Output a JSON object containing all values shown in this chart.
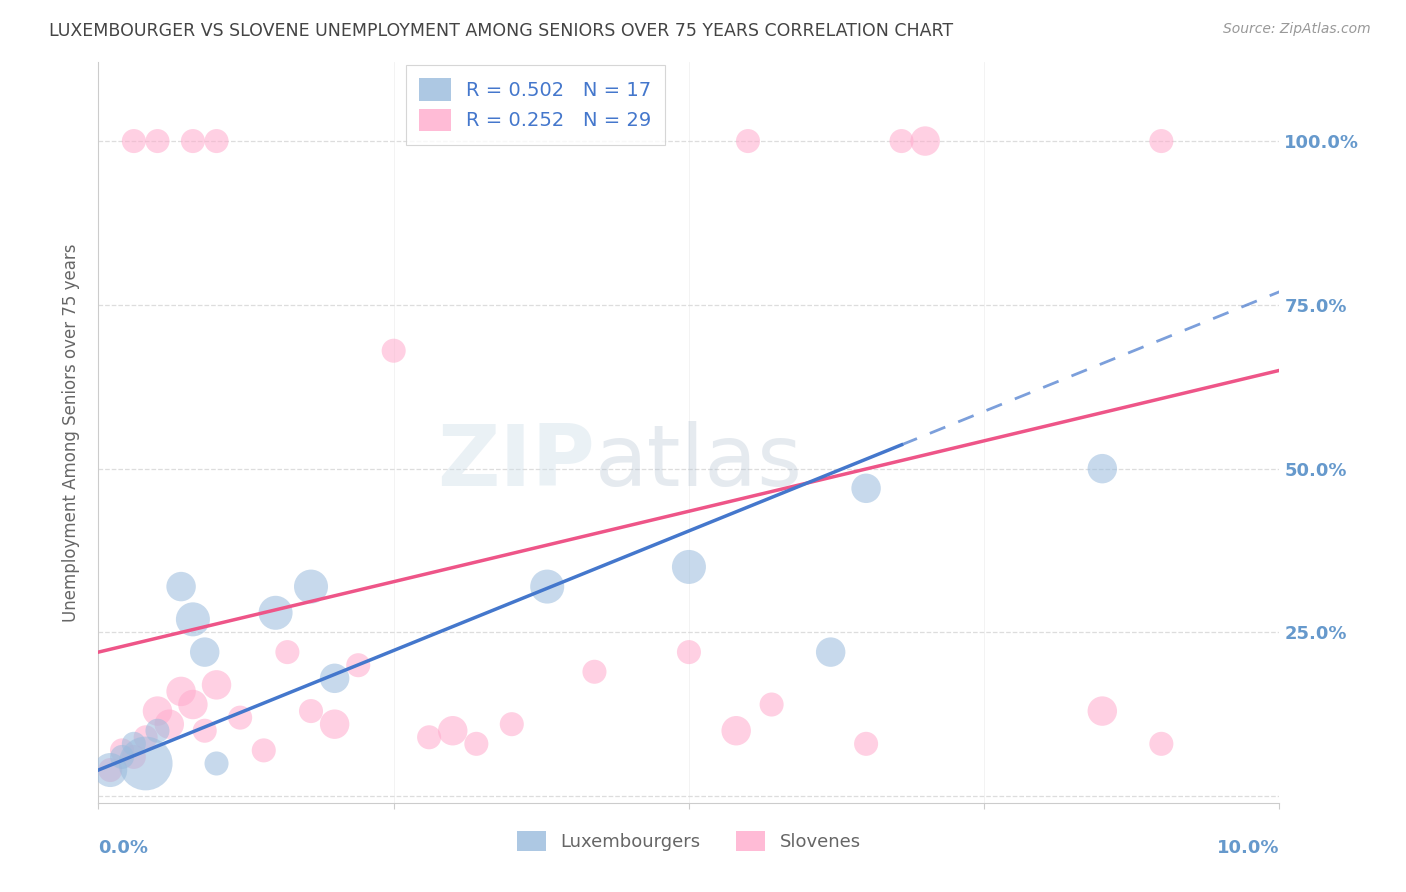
{
  "title": "LUXEMBOURGER VS SLOVENE UNEMPLOYMENT AMONG SENIORS OVER 75 YEARS CORRELATION CHART",
  "source": "Source: ZipAtlas.com",
  "ylabel": "Unemployment Among Seniors over 75 years",
  "watermark_zip": "ZIP",
  "watermark_atlas": "atlas",
  "blue_R": 0.502,
  "blue_N": 17,
  "pink_R": 0.252,
  "pink_N": 29,
  "legend_label_blue": "Luxembourgers",
  "legend_label_pink": "Slovenes",
  "blue_color": "#99BBDD",
  "blue_line_color": "#4477CC",
  "pink_color": "#FFAACC",
  "pink_line_color": "#EE5588",
  "blue_scatter_x": [
    0.001,
    0.002,
    0.003,
    0.004,
    0.005,
    0.007,
    0.008,
    0.009,
    0.01,
    0.015,
    0.018,
    0.02,
    0.038,
    0.05,
    0.062,
    0.065,
    0.085
  ],
  "blue_scatter_y": [
    0.04,
    0.06,
    0.08,
    0.05,
    0.1,
    0.32,
    0.27,
    0.22,
    0.05,
    0.28,
    0.32,
    0.18,
    0.32,
    0.35,
    0.22,
    0.47,
    0.5
  ],
  "blue_scatter_size": [
    120,
    60,
    60,
    300,
    60,
    90,
    120,
    90,
    60,
    120,
    120,
    90,
    120,
    120,
    90,
    90,
    90
  ],
  "pink_scatter_x": [
    0.001,
    0.002,
    0.003,
    0.004,
    0.005,
    0.006,
    0.007,
    0.008,
    0.009,
    0.01,
    0.012,
    0.014,
    0.016,
    0.018,
    0.02,
    0.022,
    0.025,
    0.028,
    0.03,
    0.032,
    0.035,
    0.042,
    0.05,
    0.054,
    0.057,
    0.065,
    0.07,
    0.085,
    0.09
  ],
  "pink_scatter_y": [
    0.04,
    0.07,
    0.06,
    0.09,
    0.13,
    0.11,
    0.16,
    0.14,
    0.1,
    0.17,
    0.12,
    0.07,
    0.22,
    0.13,
    0.11,
    0.2,
    0.68,
    0.09,
    0.1,
    0.08,
    0.11,
    0.19,
    0.22,
    0.1,
    0.14,
    0.08,
    1.0,
    0.13,
    0.08
  ],
  "pink_scatter_size": [
    60,
    60,
    60,
    60,
    90,
    90,
    90,
    90,
    60,
    90,
    60,
    60,
    60,
    60,
    90,
    60,
    60,
    60,
    90,
    60,
    60,
    60,
    60,
    90,
    60,
    60,
    90,
    90,
    60
  ],
  "pink_top_x": [
    0.003,
    0.005,
    0.008,
    0.01,
    0.055,
    0.068,
    0.09
  ],
  "pink_top_y": [
    1.0,
    1.0,
    1.0,
    1.0,
    1.0,
    1.0,
    1.0
  ],
  "pink_top_size": [
    60,
    60,
    60,
    60,
    60,
    60,
    60
  ],
  "blue_line_x0": 0.0,
  "blue_line_y0": 0.04,
  "blue_line_x1": 0.1,
  "blue_line_y1": 0.77,
  "pink_line_x0": 0.0,
  "pink_line_y0": 0.22,
  "pink_line_x1": 0.1,
  "pink_line_y1": 0.65,
  "xlim": [
    0.0,
    0.1
  ],
  "ylim": [
    -0.01,
    1.12
  ],
  "grid_yticks": [
    0.0,
    0.25,
    0.5,
    0.75,
    1.0
  ],
  "right_yticklabels": [
    "",
    "25.0%",
    "50.0%",
    "75.0%",
    "100.0%"
  ],
  "background_color": "#FFFFFF",
  "grid_color": "#DDDDDD",
  "title_color": "#444444",
  "right_axis_color": "#6699CC"
}
